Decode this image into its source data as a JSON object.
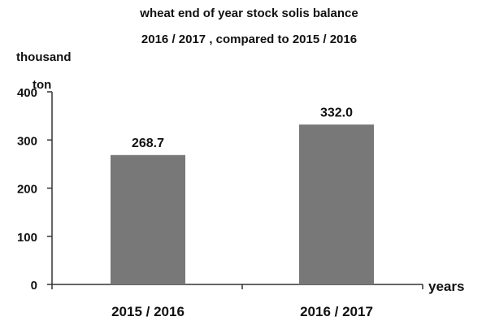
{
  "chart_data": {
    "type": "bar",
    "title_lines": [
      "wheat end of year stock solis balance",
      "2016 / 2017 , compared to 2015 / 2016"
    ],
    "ylabel_lines": [
      "thousand",
      "ton"
    ],
    "xlabel": "years",
    "categories": [
      "2015 / 2016",
      "2016 / 2017"
    ],
    "values": [
      268.7,
      332.0
    ],
    "data_labels": [
      "268.7",
      "332.0"
    ],
    "ylim": [
      0,
      400
    ],
    "yticks": [
      0,
      100,
      200,
      300,
      400
    ],
    "grid": false,
    "legend": "none",
    "bar_color": "#787878",
    "axis_color": "#333333"
  }
}
